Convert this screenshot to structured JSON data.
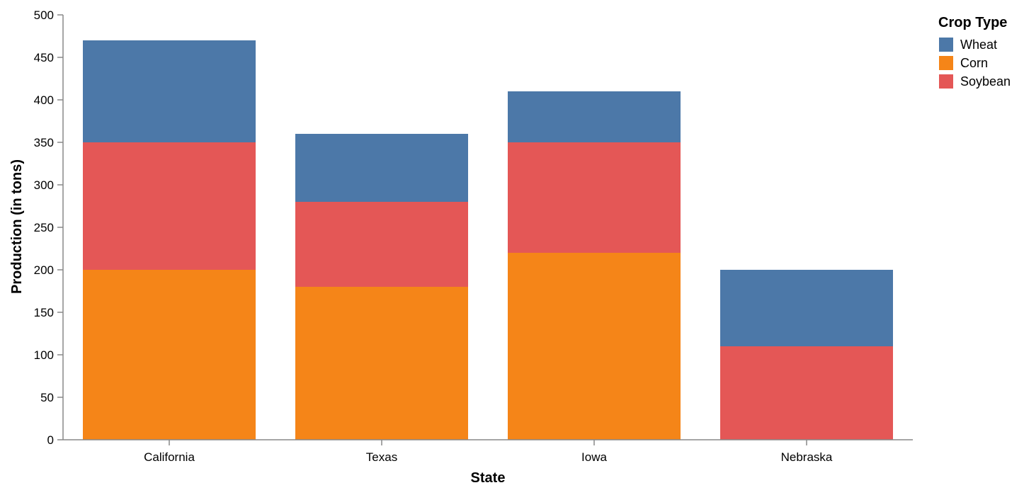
{
  "chart_data": {
    "type": "bar",
    "stacked": true,
    "title": "",
    "xlabel": "State",
    "ylabel": "Production (in tons)",
    "ylim": [
      0,
      500
    ],
    "yticks": [
      0,
      50,
      100,
      150,
      200,
      250,
      300,
      350,
      400,
      450,
      500
    ],
    "grid": false,
    "categories": [
      "California",
      "Texas",
      "Iowa",
      "Nebraska"
    ],
    "stack_order": [
      "Corn",
      "Soybean",
      "Wheat"
    ],
    "series": [
      {
        "name": "Wheat",
        "color": "#4c78a8",
        "values": [
          120,
          80,
          60,
          90
        ]
      },
      {
        "name": "Corn",
        "color": "#f58518",
        "values": [
          200,
          180,
          220,
          0
        ]
      },
      {
        "name": "Soybean",
        "color": "#e45756",
        "values": [
          150,
          100,
          130,
          110
        ]
      }
    ],
    "legend": {
      "title": "Crop Type",
      "position": "top-right",
      "entries": [
        "Wheat",
        "Corn",
        "Soybean"
      ]
    }
  }
}
